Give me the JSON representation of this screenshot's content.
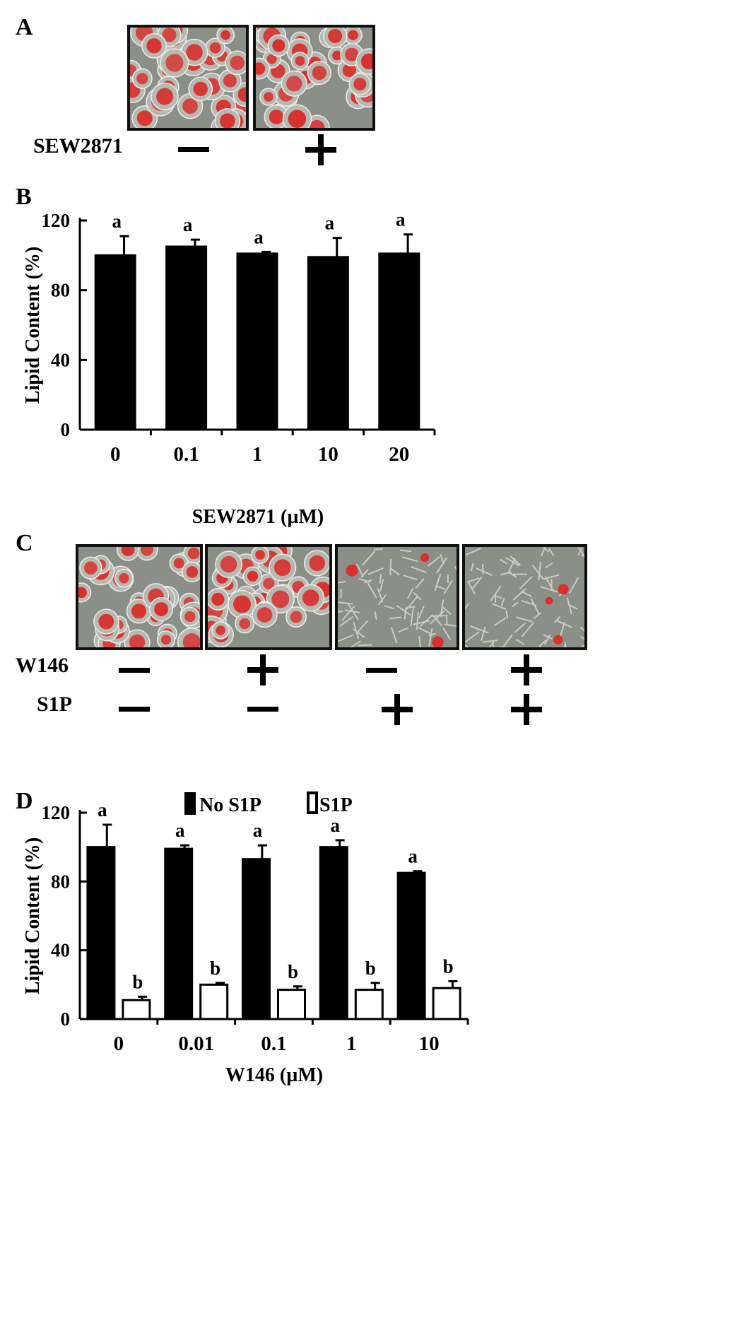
{
  "panels": {
    "A": {
      "letter": "A",
      "row_label": "SEW2871",
      "signs": [
        "−",
        "+"
      ]
    },
    "B": {
      "letter": "B"
    },
    "C": {
      "letter": "C",
      "rows": [
        {
          "label": "W146",
          "signs": [
            "−",
            "+",
            "−",
            "+"
          ]
        },
        {
          "label": "S1P",
          "signs": [
            "−",
            "−",
            "+",
            "+"
          ]
        }
      ]
    },
    "D": {
      "letter": "D"
    }
  },
  "colors": {
    "bar_fill": "#000000",
    "bar_open": "#ffffff",
    "cell_stain": "#d8302e",
    "micro_bg": "#8a8f87"
  },
  "chart_data": [
    {
      "id": "B",
      "type": "bar",
      "categories": [
        "0",
        "0.1",
        "1",
        "10",
        "20"
      ],
      "values": [
        100,
        105,
        101,
        99,
        101
      ],
      "errors": [
        11,
        4,
        1,
        11,
        11
      ],
      "labels": [
        "a",
        "a",
        "a",
        "a",
        "a"
      ],
      "ylabel": "Lipid Content (%)",
      "xlabel": "SEW2871 (µM)",
      "ylim": [
        0,
        120
      ],
      "yticks": [
        "0",
        "40",
        "80",
        "120"
      ]
    },
    {
      "id": "D",
      "type": "bar",
      "categories": [
        "0",
        "0.01",
        "0.1",
        "1",
        "10"
      ],
      "series": [
        {
          "name": "No S1P",
          "values": [
            100,
            99,
            93,
            100,
            85
          ],
          "errors": [
            13,
            2,
            8,
            4,
            1
          ],
          "labels": [
            "a",
            "a",
            "a",
            "a",
            "a"
          ]
        },
        {
          "name": "S1P",
          "values": [
            11,
            20,
            17,
            17,
            18
          ],
          "errors": [
            2,
            1,
            2,
            4,
            4
          ],
          "labels": [
            "b",
            "b",
            "b",
            "b",
            "b"
          ]
        }
      ],
      "ylabel": "Lipid Content (%)",
      "xlabel": "W146 (µM)",
      "ylim": [
        0,
        120
      ],
      "yticks": [
        "0",
        "40",
        "80",
        "120"
      ],
      "legend": "top-center"
    }
  ]
}
